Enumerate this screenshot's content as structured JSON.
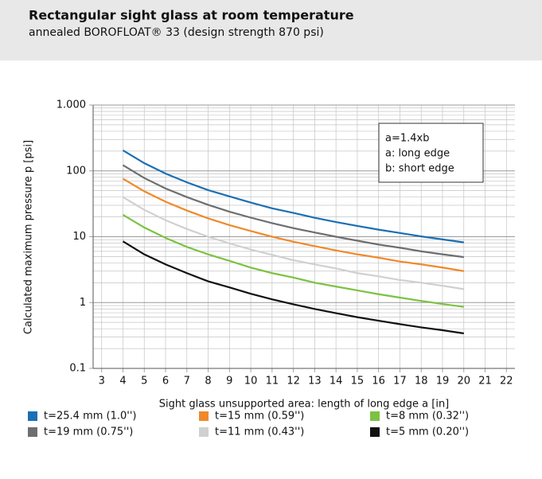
{
  "chart_data": {
    "type": "line",
    "title": "Rectangular sight glass at room temperature",
    "subtitle": "annealed BOROFLOAT® 33 (design strength 870 psi)",
    "xlabel": "Sight glass unsupported area: length of long edge a [in]",
    "ylabel": "Calculated maximum pressure p [psi]",
    "annotations": [
      "a=1.4xb",
      "a: long edge",
      "b: short edge"
    ],
    "log_y": true,
    "grid": true,
    "x": [
      4,
      5,
      6,
      7,
      8,
      9,
      10,
      11,
      12,
      13,
      14,
      15,
      16,
      17,
      18,
      19,
      20
    ],
    "xlim": [
      2.6,
      22.4
    ],
    "xticks": [
      3,
      4,
      5,
      6,
      7,
      8,
      9,
      10,
      11,
      12,
      13,
      14,
      15,
      16,
      17,
      18,
      19,
      20,
      21,
      22
    ],
    "ylim": [
      0.1,
      1000
    ],
    "yticks": [
      0.1,
      1,
      10,
      100,
      {
        "value": 1000,
        "label": "1.000"
      }
    ],
    "yminorticks": [
      0.2,
      0.3,
      0.4,
      0.5,
      0.6,
      0.7,
      0.8,
      0.9,
      2,
      3,
      4,
      5,
      6,
      7,
      8,
      9,
      20,
      30,
      40,
      50,
      60,
      70,
      80,
      90,
      200,
      300,
      400,
      500,
      600,
      700,
      800,
      900
    ],
    "series": [
      {
        "name": "t=25.4 mm (1.0'')",
        "color": "#1a6fb5",
        "values": [
          205,
          131,
          91,
          67,
          51,
          41,
          33,
          27,
          23,
          19.4,
          16.7,
          14.6,
          12.8,
          11.4,
          10.1,
          9.1,
          8.2
        ]
      },
      {
        "name": "t=19 mm (0.75'')",
        "color": "#6d6e70",
        "values": [
          122,
          78,
          54,
          40,
          30.5,
          24,
          19.5,
          16.1,
          13.5,
          11.6,
          10,
          8.7,
          7.6,
          6.8,
          6.0,
          5.4,
          4.9
        ]
      },
      {
        "name": "t=15 mm (0.59'')",
        "color": "#f0892a",
        "values": [
          76,
          49,
          34,
          25,
          19,
          15,
          12.2,
          10,
          8.4,
          7.2,
          6.2,
          5.4,
          4.8,
          4.2,
          3.8,
          3.4,
          3.0
        ]
      },
      {
        "name": "t=11 mm (0.43'')",
        "color": "#cfd0d1",
        "values": [
          40,
          25.6,
          17.8,
          13.1,
          10,
          7.9,
          6.4,
          5.3,
          4.4,
          3.8,
          3.3,
          2.8,
          2.5,
          2.2,
          2.0,
          1.8,
          1.6
        ]
      },
      {
        "name": "t=8 mm (0.32'')",
        "color": "#7cc242",
        "values": [
          21.5,
          13.8,
          9.6,
          7.0,
          5.4,
          4.3,
          3.4,
          2.8,
          2.4,
          2.0,
          1.75,
          1.53,
          1.34,
          1.19,
          1.06,
          0.95,
          0.86
        ]
      },
      {
        "name": "t=5 mm (0.20'')",
        "color": "#111111",
        "values": [
          8.5,
          5.4,
          3.8,
          2.8,
          2.1,
          1.7,
          1.36,
          1.12,
          0.94,
          0.8,
          0.69,
          0.6,
          0.53,
          0.47,
          0.42,
          0.38,
          0.34
        ]
      }
    ]
  }
}
